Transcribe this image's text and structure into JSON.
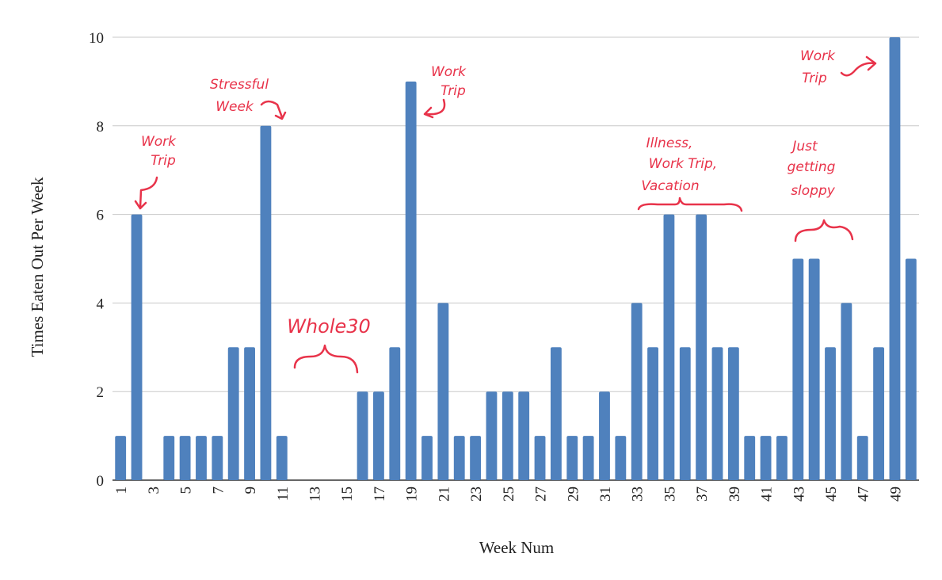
{
  "chart_data": {
    "type": "bar",
    "title": "",
    "xlabel": "Week Num",
    "ylabel": "Times Eaten Out Per Week",
    "ylim": [
      0,
      10
    ],
    "yticks": [
      0,
      2,
      4,
      6,
      8,
      10
    ],
    "grid": true,
    "bar_color": "#4f81bd",
    "annotation_color": "#e8334a",
    "categories": [
      1,
      2,
      3,
      4,
      5,
      6,
      7,
      8,
      9,
      10,
      11,
      12,
      13,
      14,
      15,
      16,
      17,
      18,
      19,
      20,
      21,
      22,
      23,
      24,
      25,
      26,
      27,
      28,
      29,
      30,
      31,
      32,
      33,
      34,
      35,
      36,
      37,
      38,
      39,
      40,
      41,
      42,
      43,
      44,
      45,
      46,
      47,
      48,
      49,
      50
    ],
    "xtick_labels": [
      1,
      3,
      5,
      7,
      9,
      11,
      13,
      15,
      17,
      19,
      21,
      23,
      25,
      27,
      29,
      31,
      33,
      35,
      37,
      39,
      41,
      43,
      45,
      47,
      49
    ],
    "values": [
      1,
      6,
      0,
      1,
      1,
      1,
      1,
      3,
      3,
      8,
      1,
      0,
      0,
      0,
      0,
      2,
      2,
      3,
      9,
      1,
      4,
      1,
      1,
      2,
      2,
      2,
      1,
      3,
      1,
      1,
      2,
      1,
      4,
      3,
      6,
      3,
      6,
      3,
      3,
      1,
      1,
      1,
      5,
      5,
      3,
      4,
      1,
      3,
      10,
      5
    ],
    "annotations": [
      {
        "lines": [
          "Work",
          "Trip"
        ],
        "week": 2
      },
      {
        "lines": [
          "Stressful",
          "Week"
        ],
        "week": 10
      },
      {
        "lines": [
          "Whole30"
        ],
        "week": "12-15"
      },
      {
        "lines": [
          "Work",
          "Trip"
        ],
        "week": 19
      },
      {
        "lines": [
          "Illness,",
          "Work Trip,",
          "Vacation"
        ],
        "week": "33-39"
      },
      {
        "lines": [
          "Just",
          "getting",
          "sloppy"
        ],
        "week": "43-46"
      },
      {
        "lines": [
          "Work",
          "Trip"
        ],
        "week": 49
      }
    ]
  }
}
